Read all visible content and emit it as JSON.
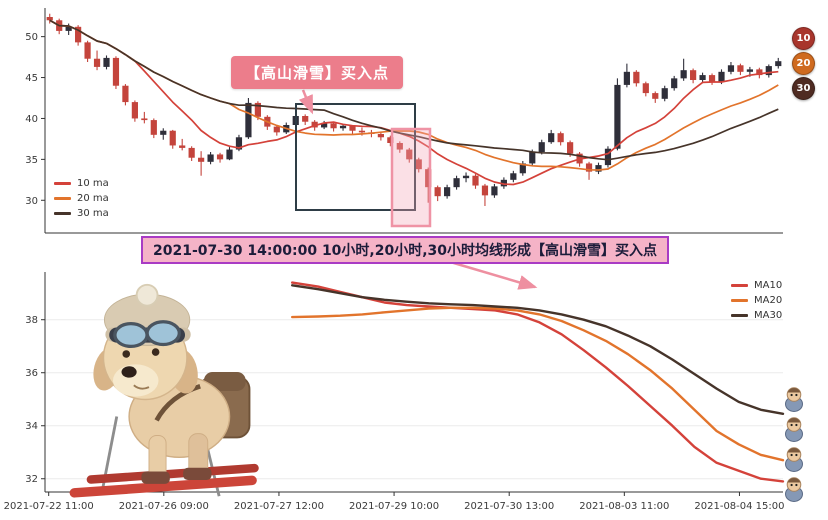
{
  "annotation": {
    "text": "【高山滑雪】买入点"
  },
  "banner": {
    "text": "2021-07-30 14:00:00 10小时,20小时,30小时均线形成【高山滑雪】买入点"
  },
  "badges": [
    {
      "label": "10",
      "color": "#a8352c"
    },
    {
      "label": "20",
      "color": "#cf6a1f"
    },
    {
      "label": "30",
      "color": "#4f2b22"
    }
  ],
  "colors": {
    "candle_up": "#2f2f3a",
    "candle_down": "#c4443c",
    "ma10": "#d4423a",
    "ma20": "#e2742c",
    "ma30": "#46342a",
    "grid": "#ebebeb",
    "axis": "#333333",
    "tick_text": "#3a3a3a",
    "highlight_box": "#2e3d46",
    "pink_box_stroke": "#ef93a5",
    "pink_box_fill": "rgba(244,166,183,0.35)",
    "arrow": "#ee8fa0"
  },
  "x_axis": {
    "labels": [
      "2021-07-22 11:00",
      "2021-07-26 09:00",
      "2021-07-27 12:00",
      "2021-07-29 10:00",
      "2021-07-30 13:00",
      "2021-08-03 11:00",
      "2021-08-04 15:00"
    ],
    "fractions": [
      0.005,
      0.161,
      0.317,
      0.473,
      0.629,
      0.785,
      0.941
    ]
  },
  "chart_data": [
    {
      "type": "candlestick",
      "title": "",
      "ylabel": "",
      "ylim": [
        26,
        53.5
      ],
      "y_ticks": [
        30,
        35,
        40,
        45,
        50
      ],
      "grid": false,
      "legend_position": "lower-left",
      "legend": [
        {
          "label": "10 ma",
          "color": "#d4423a"
        },
        {
          "label": "20 ma",
          "color": "#e2742c"
        },
        {
          "label": "30 ma",
          "color": "#46342a"
        }
      ],
      "ma_windows": [
        10,
        20,
        30
      ],
      "candles_ohlc": [
        [
          52.4,
          52.8,
          51.6,
          52.0
        ],
        [
          52.0,
          52.2,
          50.3,
          50.7
        ],
        [
          50.7,
          51.6,
          50.2,
          51.2
        ],
        [
          51.2,
          51.4,
          48.9,
          49.3
        ],
        [
          49.3,
          49.5,
          46.9,
          47.3
        ],
        [
          47.3,
          48.3,
          45.9,
          46.3
        ],
        [
          46.3,
          47.7,
          46.0,
          47.4
        ],
        [
          47.4,
          47.6,
          43.6,
          44.0
        ],
        [
          44.0,
          44.2,
          41.6,
          42.0
        ],
        [
          42.0,
          42.2,
          39.6,
          40.0
        ],
        [
          40.0,
          40.8,
          39.4,
          39.8
        ],
        [
          39.8,
          40.0,
          37.6,
          38.0
        ],
        [
          38.0,
          38.8,
          37.4,
          38.5
        ],
        [
          38.5,
          38.6,
          36.3,
          36.7
        ],
        [
          36.7,
          37.5,
          36.1,
          36.4
        ],
        [
          36.4,
          36.6,
          34.8,
          35.2
        ],
        [
          35.2,
          36.0,
          33.0,
          34.7
        ],
        [
          34.7,
          35.9,
          34.4,
          35.6
        ],
        [
          35.6,
          35.8,
          34.6,
          35.0
        ],
        [
          35.0,
          36.5,
          34.9,
          36.2
        ],
        [
          36.2,
          38.0,
          36.0,
          37.7
        ],
        [
          37.7,
          42.5,
          37.5,
          41.9
        ],
        [
          41.9,
          42.1,
          39.8,
          40.2
        ],
        [
          40.2,
          40.4,
          38.6,
          39.0
        ],
        [
          39.0,
          39.2,
          37.9,
          38.3
        ],
        [
          38.3,
          39.5,
          38.1,
          39.2
        ],
        [
          39.2,
          40.7,
          39.0,
          40.3
        ],
        [
          40.3,
          40.5,
          39.2,
          39.6
        ],
        [
          39.6,
          39.8,
          38.5,
          38.9
        ],
        [
          38.9,
          39.7,
          38.7,
          39.4
        ],
        [
          39.4,
          39.6,
          38.4,
          38.8
        ],
        [
          38.8,
          39.3,
          38.5,
          39.1
        ],
        [
          39.1,
          39.2,
          38.1,
          38.5
        ],
        [
          38.5,
          38.9,
          37.9,
          38.3
        ],
        [
          38.3,
          38.6,
          37.7,
          38.1
        ],
        [
          38.1,
          38.3,
          37.3,
          37.7
        ],
        [
          37.7,
          37.9,
          36.6,
          37.0
        ],
        [
          37.0,
          37.2,
          35.8,
          36.2
        ],
        [
          36.2,
          36.4,
          34.6,
          35.0
        ],
        [
          35.0,
          35.2,
          33.4,
          33.8
        ],
        [
          33.8,
          34.0,
          29.7,
          31.6
        ],
        [
          31.6,
          31.8,
          29.9,
          30.5
        ],
        [
          30.5,
          31.9,
          30.2,
          31.6
        ],
        [
          31.6,
          33.0,
          31.3,
          32.7
        ],
        [
          32.7,
          33.4,
          32.2,
          33.0
        ],
        [
          33.0,
          33.2,
          31.4,
          31.8
        ],
        [
          31.8,
          32.0,
          29.3,
          30.6
        ],
        [
          30.6,
          32.0,
          30.3,
          31.7
        ],
        [
          31.7,
          32.8,
          31.4,
          32.5
        ],
        [
          32.5,
          33.6,
          32.2,
          33.3
        ],
        [
          33.3,
          34.8,
          33.0,
          34.5
        ],
        [
          34.5,
          36.2,
          34.2,
          35.9
        ],
        [
          35.9,
          37.4,
          35.6,
          37.1
        ],
        [
          37.1,
          38.6,
          36.9,
          38.2
        ],
        [
          38.2,
          38.4,
          36.7,
          37.1
        ],
        [
          37.1,
          37.3,
          35.3,
          35.7
        ],
        [
          35.7,
          35.9,
          34.1,
          34.5
        ],
        [
          34.5,
          34.7,
          32.5,
          33.5
        ],
        [
          33.5,
          34.6,
          33.2,
          34.3
        ],
        [
          34.3,
          36.6,
          34.0,
          36.3
        ],
        [
          36.3,
          44.9,
          36.1,
          44.1
        ],
        [
          44.1,
          46.7,
          43.8,
          45.7
        ],
        [
          45.7,
          45.9,
          43.9,
          44.3
        ],
        [
          44.3,
          44.5,
          42.7,
          43.1
        ],
        [
          43.1,
          43.3,
          41.9,
          42.4
        ],
        [
          42.4,
          44.0,
          42.1,
          43.7
        ],
        [
          43.7,
          45.2,
          43.4,
          44.9
        ],
        [
          44.9,
          47.3,
          44.6,
          45.9
        ],
        [
          45.9,
          46.1,
          44.3,
          44.7
        ],
        [
          44.7,
          45.6,
          44.4,
          45.3
        ],
        [
          45.3,
          45.5,
          44.1,
          44.5
        ],
        [
          44.5,
          46.0,
          44.2,
          45.7
        ],
        [
          45.7,
          46.9,
          45.4,
          46.5
        ],
        [
          46.5,
          46.7,
          45.3,
          45.7
        ],
        [
          45.7,
          46.3,
          45.1,
          46.0
        ],
        [
          46.0,
          46.2,
          44.9,
          45.3
        ],
        [
          45.3,
          46.6,
          45.0,
          46.4
        ],
        [
          46.4,
          47.4,
          46.1,
          47.0
        ]
      ]
    },
    {
      "type": "line",
      "title": "",
      "ylabel": "",
      "ylim": [
        31.5,
        39.8
      ],
      "y_ticks": [
        32,
        34,
        36,
        38
      ],
      "grid": true,
      "legend_position": "upper-right",
      "series": [
        {
          "name": "MA10",
          "color": "#d4423a",
          "points": [
            [
              0.335,
              39.4
            ],
            [
              0.37,
              39.25
            ],
            [
              0.4,
              39.05
            ],
            [
              0.43,
              38.85
            ],
            [
              0.46,
              38.65
            ],
            [
              0.49,
              38.55
            ],
            [
              0.52,
              38.5
            ],
            [
              0.55,
              38.45
            ],
            [
              0.58,
              38.4
            ],
            [
              0.61,
              38.35
            ],
            [
              0.64,
              38.2
            ],
            [
              0.67,
              37.9
            ],
            [
              0.7,
              37.45
            ],
            [
              0.73,
              36.85
            ],
            [
              0.76,
              36.2
            ],
            [
              0.79,
              35.5
            ],
            [
              0.82,
              34.75
            ],
            [
              0.85,
              34.0
            ],
            [
              0.88,
              33.2
            ],
            [
              0.91,
              32.6
            ],
            [
              0.94,
              32.3
            ],
            [
              0.97,
              32.0
            ],
            [
              1.0,
              31.9
            ]
          ]
        },
        {
          "name": "MA20",
          "color": "#e2742c",
          "points": [
            [
              0.335,
              38.1
            ],
            [
              0.37,
              38.12
            ],
            [
              0.4,
              38.15
            ],
            [
              0.43,
              38.2
            ],
            [
              0.46,
              38.28
            ],
            [
              0.49,
              38.35
            ],
            [
              0.52,
              38.42
            ],
            [
              0.55,
              38.45
            ],
            [
              0.58,
              38.45
            ],
            [
              0.61,
              38.42
            ],
            [
              0.64,
              38.35
            ],
            [
              0.67,
              38.2
            ],
            [
              0.7,
              37.95
            ],
            [
              0.73,
              37.6
            ],
            [
              0.76,
              37.2
            ],
            [
              0.79,
              36.7
            ],
            [
              0.82,
              36.1
            ],
            [
              0.85,
              35.4
            ],
            [
              0.88,
              34.6
            ],
            [
              0.91,
              33.8
            ],
            [
              0.94,
              33.3
            ],
            [
              0.97,
              32.9
            ],
            [
              1.0,
              32.7
            ]
          ]
        },
        {
          "name": "MA30",
          "color": "#46342a",
          "points": [
            [
              0.335,
              39.3
            ],
            [
              0.37,
              39.15
            ],
            [
              0.4,
              39.0
            ],
            [
              0.43,
              38.85
            ],
            [
              0.46,
              38.75
            ],
            [
              0.49,
              38.68
            ],
            [
              0.52,
              38.62
            ],
            [
              0.55,
              38.58
            ],
            [
              0.58,
              38.55
            ],
            [
              0.61,
              38.5
            ],
            [
              0.64,
              38.45
            ],
            [
              0.67,
              38.35
            ],
            [
              0.7,
              38.2
            ],
            [
              0.73,
              38.0
            ],
            [
              0.76,
              37.75
            ],
            [
              0.79,
              37.4
            ],
            [
              0.82,
              37.0
            ],
            [
              0.85,
              36.5
            ],
            [
              0.88,
              35.95
            ],
            [
              0.91,
              35.4
            ],
            [
              0.94,
              34.9
            ],
            [
              0.97,
              34.6
            ],
            [
              1.0,
              34.45
            ]
          ]
        }
      ]
    }
  ]
}
